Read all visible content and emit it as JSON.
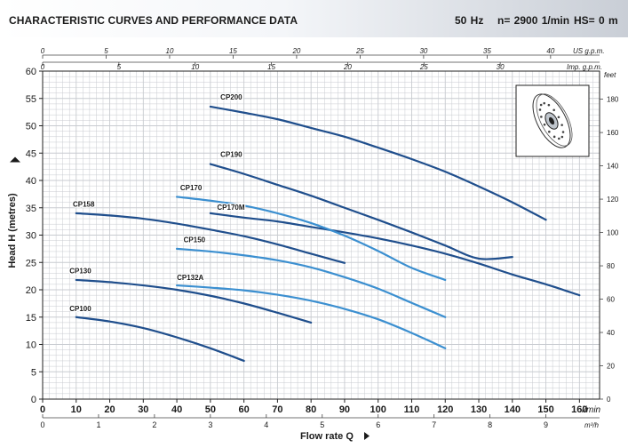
{
  "header": {
    "title": "CHARACTERISTIC CURVES AND PERFORMANCE DATA",
    "frequency": "50 Hz",
    "speed": "n= 2900 1/min",
    "hs": "HS= 0 m"
  },
  "chart_data": {
    "type": "line",
    "title": "CHARACTERISTIC CURVES AND PERFORMANCE DATA",
    "xlabel": "Flow rate Q",
    "ylabel": "Head H (metres)",
    "x_unit_label": "l/min",
    "xlim": [
      0,
      166
    ],
    "ylim": [
      0,
      60
    ],
    "grid": true,
    "x_ticks": [
      0,
      10,
      20,
      30,
      40,
      50,
      60,
      70,
      80,
      90,
      100,
      110,
      120,
      130,
      140,
      150,
      160
    ],
    "y_ticks": [
      0,
      5,
      10,
      15,
      20,
      25,
      30,
      35,
      40,
      45,
      50,
      55,
      60
    ],
    "secondary_axes": {
      "us_gpm": {
        "label": "US g.p.m.",
        "ticks": [
          "0",
          "5",
          "10",
          "15",
          "20",
          "25",
          "30",
          "35",
          "40"
        ],
        "values": [
          0,
          5,
          10,
          15,
          20,
          25,
          30,
          35,
          40
        ]
      },
      "imp_gpm": {
        "label": "Imp. g.p.m.",
        "ticks": [
          "0",
          "5",
          "10",
          "15",
          "20",
          "25",
          "30"
        ],
        "values": [
          0,
          5,
          10,
          15,
          20,
          25,
          30
        ]
      },
      "m3h": {
        "label": "m³/h",
        "ticks": [
          "0",
          "1",
          "2",
          "3",
          "4",
          "5",
          "6",
          "7",
          "8",
          "9"
        ],
        "values": [
          0,
          1,
          2,
          3,
          4,
          5,
          6,
          7,
          8,
          9
        ]
      },
      "feet": {
        "label": "feet",
        "ticks": [
          "0",
          "20",
          "40",
          "60",
          "80",
          "100",
          "120",
          "140",
          "160",
          "180"
        ],
        "values": [
          0,
          20,
          40,
          60,
          80,
          100,
          120,
          140,
          160,
          180
        ]
      }
    },
    "series": [
      {
        "name": "CP200",
        "color": "#1f4e8c",
        "x": [
          50,
          60,
          70,
          80,
          90,
          100,
          110,
          120,
          130,
          140,
          150
        ],
        "y": [
          53.5,
          52.4,
          51.2,
          49.6,
          48.0,
          46.0,
          43.9,
          41.6,
          38.9,
          36.0,
          32.8
        ]
      },
      {
        "name": "CP190",
        "color": "#1f4e8c",
        "x": [
          50,
          60,
          70,
          80,
          90,
          100,
          110,
          120,
          130,
          140
        ],
        "y": [
          43.0,
          41.2,
          39.2,
          37.2,
          35.0,
          32.8,
          30.5,
          28.1,
          25.7,
          26.0
        ]
      },
      {
        "name": "CP170M",
        "color": "#1f4e8c",
        "x": [
          50,
          60,
          70,
          80,
          90,
          100,
          110,
          120,
          130,
          140,
          150,
          160
        ],
        "y": [
          34.0,
          33.2,
          32.5,
          31.5,
          30.5,
          29.4,
          28.1,
          26.6,
          24.8,
          22.8,
          21.0,
          19.0
        ]
      },
      {
        "name": "CP170",
        "color": "#3b8fd0",
        "x": [
          40,
          50,
          60,
          70,
          80,
          90,
          100,
          110,
          120
        ],
        "y": [
          37.0,
          36.3,
          35.4,
          34.0,
          32.2,
          29.9,
          27.1,
          24.0,
          21.8
        ]
      },
      {
        "name": "CP158",
        "color": "#1f4e8c",
        "x": [
          10,
          20,
          30,
          40,
          50,
          60,
          70,
          80,
          90
        ],
        "y": [
          34.0,
          33.6,
          33.0,
          32.1,
          31.0,
          29.8,
          28.3,
          26.6,
          24.9
        ]
      },
      {
        "name": "CP150",
        "color": "#3b8fd0",
        "x": [
          40,
          50,
          60,
          70,
          80,
          90,
          100,
          110,
          120
        ],
        "y": [
          27.5,
          27.0,
          26.3,
          25.4,
          24.1,
          22.3,
          20.2,
          17.6,
          15.0
        ]
      },
      {
        "name": "CP132A",
        "color": "#3b8fd0",
        "x": [
          40,
          50,
          60,
          70,
          80,
          90,
          100,
          110,
          120
        ],
        "y": [
          20.8,
          20.4,
          19.9,
          19.1,
          18.0,
          16.5,
          14.6,
          12.1,
          9.3
        ]
      },
      {
        "name": "CP130",
        "color": "#1f4e8c",
        "x": [
          10,
          20,
          30,
          40,
          50,
          60,
          70,
          80
        ],
        "y": [
          21.8,
          21.4,
          20.8,
          20.0,
          18.9,
          17.5,
          15.8,
          14.0
        ]
      },
      {
        "name": "CP100",
        "color": "#1f4e8c",
        "x": [
          10,
          20,
          30,
          40,
          50,
          60
        ],
        "y": [
          15.0,
          14.2,
          13.0,
          11.3,
          9.3,
          7.0
        ]
      }
    ]
  },
  "curve_labels": [
    {
      "text": "CP200",
      "x": 53,
      "y": 54.8
    },
    {
      "text": "CP190",
      "x": 53,
      "y": 44.3
    },
    {
      "text": "CP170",
      "x": 41,
      "y": 38.2
    },
    {
      "text": "CP170M",
      "x": 52,
      "y": 34.6
    },
    {
      "text": "CP158",
      "x": 9,
      "y": 35.2
    },
    {
      "text": "CP150",
      "x": 42,
      "y": 28.7
    },
    {
      "text": "CP132A",
      "x": 40,
      "y": 21.8
    },
    {
      "text": "CP130",
      "x": 8,
      "y": 23.0
    },
    {
      "text": "CP100",
      "x": 8,
      "y": 16.1
    }
  ],
  "colors": {
    "dark_curve": "#1f4e8c",
    "light_curve": "#3b8fd0",
    "grid": "#c8cbd0",
    "frame": "#222222"
  },
  "icon": {
    "name": "impeller-icon"
  }
}
